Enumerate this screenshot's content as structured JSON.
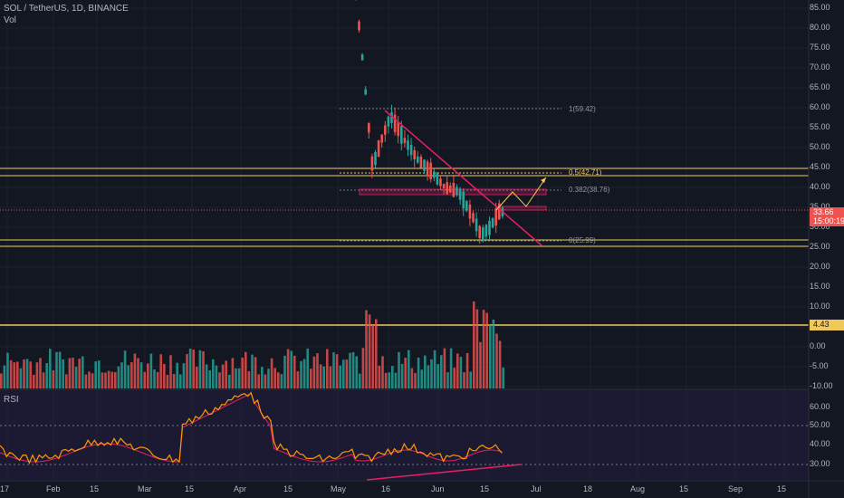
{
  "header": {
    "symbol_line": "SOL / TetherUS, 1D, BINANCE",
    "vol_label": "Vol",
    "rsi_label": "RSI"
  },
  "colors": {
    "background": "#131722",
    "up": "#26a69a",
    "down": "#ef5350",
    "trendline": "#e91e63",
    "level": "#f0c85a",
    "rsi": "#ff9800",
    "rsi_ma": "#e91e63",
    "axis_text": "#b2b5be"
  },
  "price_axis": [
    "85.00",
    "80.00",
    "75.00",
    "70.00",
    "65.00",
    "60.00",
    "55.00",
    "50.00",
    "45.00",
    "40.00",
    "35.00",
    "30.00",
    "25.00",
    "20.00",
    "15.00",
    "10.00",
    "5.00",
    "0.00",
    "-5.00",
    "-10.00"
  ],
  "rsi_axis": [
    "60.00",
    "50.00",
    "40.00",
    "30.00"
  ],
  "time_axis": [
    "17",
    "Feb",
    "15",
    "Mar",
    "15",
    "Apr",
    "15",
    "May",
    "16",
    "Jun",
    "15",
    "Jul",
    "18",
    "Aug",
    "15",
    "Sep",
    "15"
  ],
  "tags": {
    "last_price": "33.66",
    "countdown": "15:00:19",
    "volume_level": "4.43"
  },
  "fib_labels": {
    "f1": "1(59.42)",
    "f05": "0.5(42.71)",
    "f0382": "0.382(38.76)",
    "f0": "0(25.99)"
  }
}
